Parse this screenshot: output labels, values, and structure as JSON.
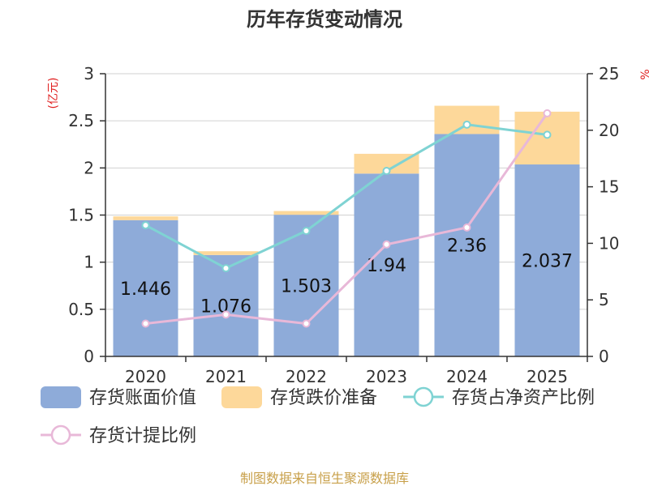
{
  "chart_data": {
    "type": "bar",
    "title": "历年存货变动情况",
    "categories": [
      "2020",
      "2021",
      "2022",
      "2023",
      "2024",
      "2025"
    ],
    "y_left": {
      "unit": "(亿元)",
      "ylim": [
        0,
        3
      ],
      "ticks": [
        "0",
        "0.5",
        "1",
        "1.5",
        "2",
        "2.5",
        "3"
      ]
    },
    "y_right": {
      "unit": "%",
      "ylim": [
        0,
        25
      ],
      "ticks": [
        "0",
        "5",
        "10",
        "15",
        "20",
        "25"
      ]
    },
    "series": [
      {
        "name": "存货账面价值",
        "type": "bar",
        "stack": "inv",
        "axis": "left",
        "color": "#8eabd9",
        "values": [
          1.446,
          1.076,
          1.503,
          1.94,
          2.36,
          2.037
        ],
        "labels": [
          "1.446",
          "1.076",
          "1.503",
          "1.94",
          "2.36",
          "2.037"
        ]
      },
      {
        "name": "存货跌价准备",
        "type": "bar",
        "stack": "inv",
        "axis": "left",
        "color": "#fdd89a",
        "values": [
          0.04,
          0.04,
          0.04,
          0.21,
          0.3,
          0.56
        ]
      },
      {
        "name": "存货占净资产比例",
        "type": "line",
        "axis": "right",
        "color": "#7fd3d3",
        "values": [
          11.6,
          7.8,
          11.1,
          16.4,
          20.5,
          19.6
        ]
      },
      {
        "name": "存货计提比例",
        "type": "line",
        "axis": "right",
        "color": "#e8b8d8",
        "values": [
          2.9,
          3.7,
          2.9,
          9.9,
          11.4,
          21.5
        ]
      }
    ],
    "grid": true,
    "legend": "bottom"
  },
  "source_note": "制图数据来自恒生聚源数据库"
}
